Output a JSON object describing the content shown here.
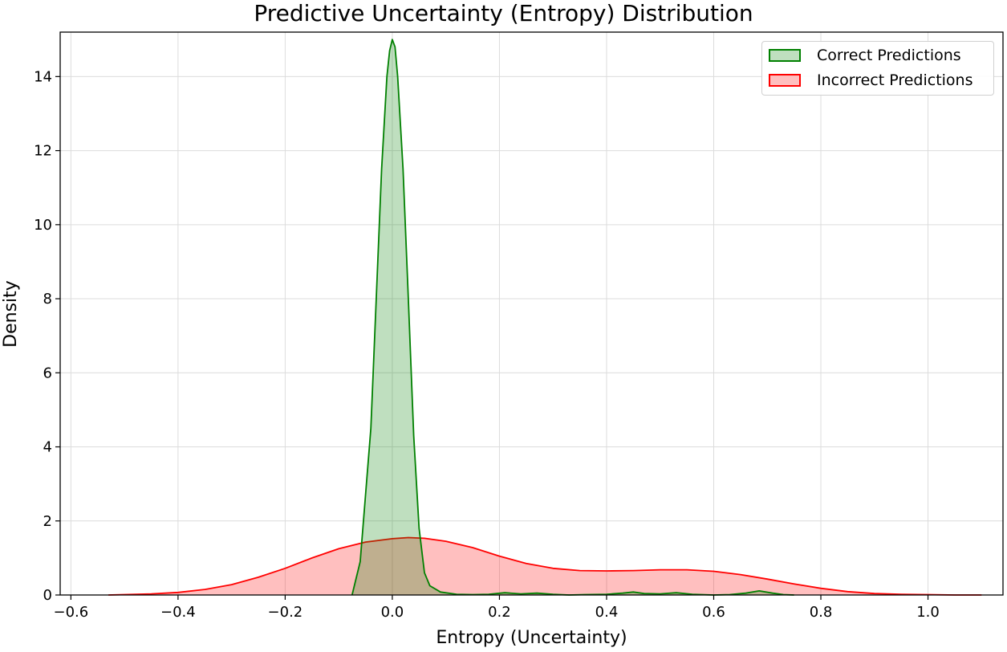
{
  "chart_data": {
    "type": "area",
    "title": "Predictive Uncertainty (Entropy) Distribution",
    "xlabel": "Entropy (Uncertainty)",
    "ylabel": "Density",
    "xlim": [
      -0.62,
      1.14
    ],
    "ylim": [
      0,
      15.2
    ],
    "xticks": [
      -0.6,
      -0.4,
      -0.2,
      0.0,
      0.2,
      0.4,
      0.6,
      0.8,
      1.0
    ],
    "xtick_labels": [
      "−0.6",
      "−0.4",
      "−0.2",
      "0.0",
      "0.2",
      "0.4",
      "0.6",
      "0.8",
      "1.0"
    ],
    "yticks": [
      0,
      2,
      4,
      6,
      8,
      10,
      12,
      14
    ],
    "ytick_labels": [
      "0",
      "2",
      "4",
      "6",
      "8",
      "10",
      "12",
      "14"
    ],
    "grid": true,
    "legend_position": "top-right",
    "series": [
      {
        "name": "Correct Predictions",
        "line_color": "#008000",
        "fill_color": "#008000",
        "fill_opacity": 0.25,
        "x": [
          -0.075,
          -0.06,
          -0.04,
          -0.03,
          -0.02,
          -0.01,
          -0.005,
          0.0,
          0.005,
          0.01,
          0.02,
          0.03,
          0.04,
          0.05,
          0.06,
          0.07,
          0.09,
          0.12,
          0.15,
          0.18,
          0.21,
          0.24,
          0.27,
          0.3,
          0.33,
          0.36,
          0.4,
          0.43,
          0.45,
          0.47,
          0.5,
          0.53,
          0.56,
          0.6,
          0.63,
          0.66,
          0.685,
          0.71,
          0.73,
          0.75
        ],
        "y": [
          0.0,
          0.9,
          4.5,
          8.0,
          11.5,
          14.0,
          14.7,
          15.0,
          14.8,
          14.0,
          11.5,
          8.0,
          4.3,
          1.8,
          0.6,
          0.25,
          0.08,
          0.02,
          0.01,
          0.02,
          0.06,
          0.03,
          0.05,
          0.02,
          0.0,
          0.01,
          0.02,
          0.05,
          0.08,
          0.04,
          0.03,
          0.06,
          0.02,
          0.0,
          0.01,
          0.05,
          0.11,
          0.05,
          0.01,
          0.0
        ]
      },
      {
        "name": "Incorrect Predictions",
        "line_color": "#ff0000",
        "fill_color": "#ff0000",
        "fill_opacity": 0.25,
        "x": [
          -0.53,
          -0.45,
          -0.4,
          -0.35,
          -0.3,
          -0.25,
          -0.2,
          -0.15,
          -0.1,
          -0.05,
          0.0,
          0.03,
          0.06,
          0.1,
          0.15,
          0.2,
          0.25,
          0.3,
          0.35,
          0.4,
          0.45,
          0.5,
          0.55,
          0.6,
          0.65,
          0.7,
          0.75,
          0.8,
          0.85,
          0.9,
          0.95,
          1.0,
          1.05,
          1.1
        ],
        "y": [
          0.0,
          0.03,
          0.07,
          0.15,
          0.28,
          0.48,
          0.72,
          1.0,
          1.25,
          1.43,
          1.52,
          1.55,
          1.53,
          1.45,
          1.28,
          1.05,
          0.85,
          0.72,
          0.66,
          0.65,
          0.66,
          0.68,
          0.68,
          0.64,
          0.55,
          0.43,
          0.3,
          0.18,
          0.09,
          0.04,
          0.02,
          0.01,
          0.0,
          0.0
        ]
      }
    ]
  }
}
